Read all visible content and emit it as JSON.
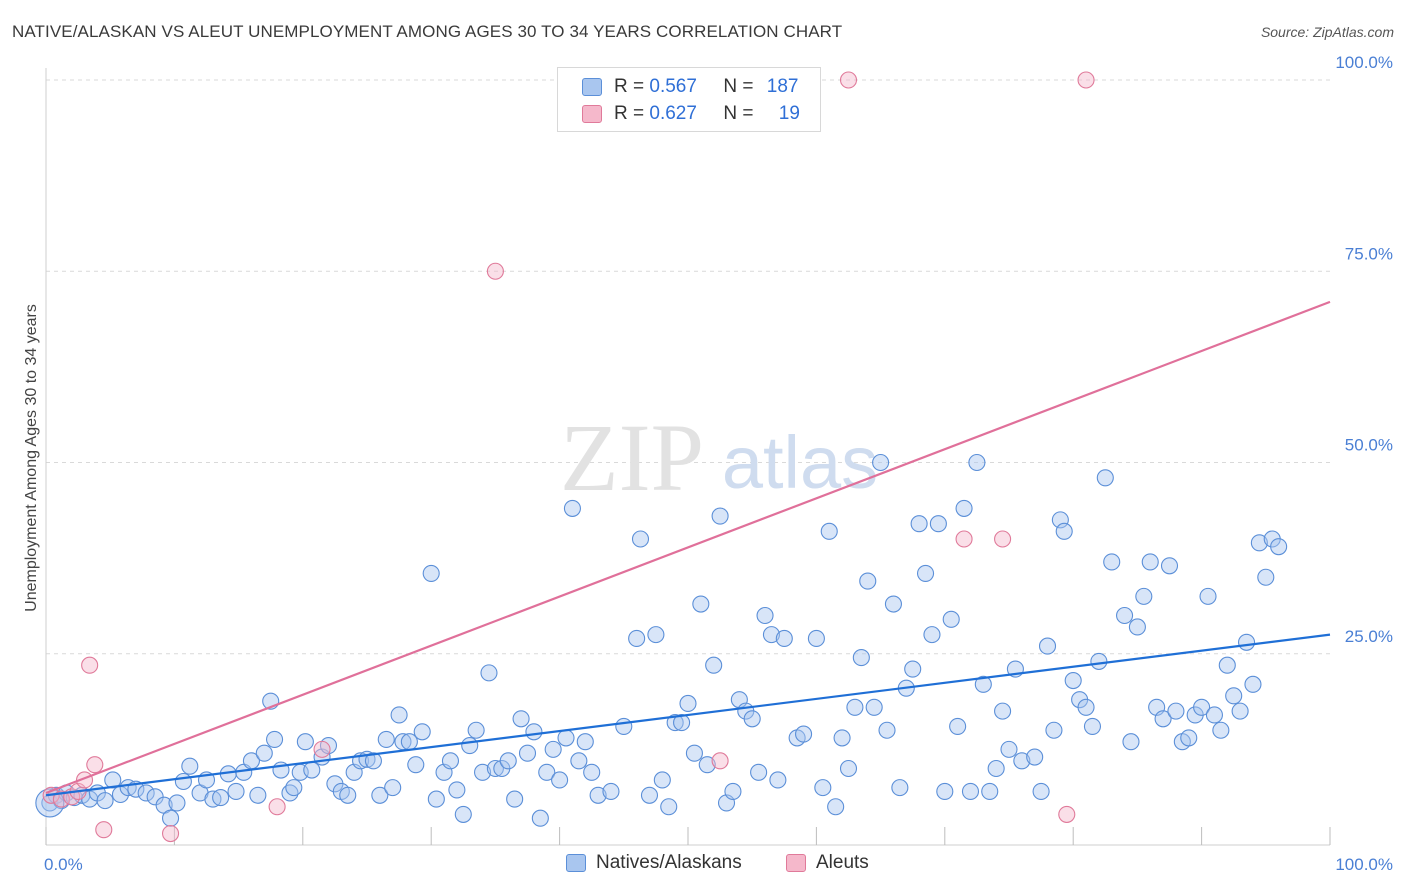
{
  "title": "NATIVE/ALASKAN VS ALEUT UNEMPLOYMENT AMONG AGES 30 TO 34 YEARS CORRELATION CHART",
  "source": "Source: ZipAtlas.com",
  "watermark": {
    "zip": "ZIP",
    "atlas": "atlas"
  },
  "legend": {
    "rows": [
      {
        "r_label": "R = ",
        "r_value": "0.567",
        "n_label": "N = ",
        "n_value": "187"
      },
      {
        "r_label": "R = ",
        "r_value": "0.627",
        "n_label": "N = ",
        "n_value": "19"
      }
    ]
  },
  "colors": {
    "blue_fill": "#a9c6ef",
    "blue_stroke": "#5b8fd8",
    "blue_line": "#1f6fd6",
    "pink_fill": "#f5b8cb",
    "pink_stroke": "#e07a9a",
    "pink_line": "#e0709a",
    "tick": "#4a7fd4",
    "grid": "#d9d9d9"
  },
  "chart_data": {
    "type": "scatter",
    "title": "NATIVE/ALASKAN VS ALEUT UNEMPLOYMENT AMONG AGES 30 TO 34 YEARS CORRELATION CHART",
    "xlabel": "",
    "ylabel": "Unemployment Among Ages 30 to 34 years",
    "xlim": [
      0,
      100
    ],
    "ylim": [
      0,
      100
    ],
    "x_tick_labels": [
      "0.0%",
      "100.0%"
    ],
    "y_tick_labels": [
      "25.0%",
      "50.0%",
      "75.0%",
      "100.0%"
    ],
    "grid": true,
    "legend_position": "top-center and bottom",
    "series": [
      {
        "name": "Natives/Alaskans",
        "r": 0.567,
        "n": 187,
        "trend": {
          "x": [
            0,
            100
          ],
          "y": [
            6.5,
            27.5
          ]
        },
        "points": [
          [
            0.3,
            5.5
          ],
          [
            0.8,
            6.5
          ],
          [
            1.2,
            5.8
          ],
          [
            1.6,
            6.8
          ],
          [
            2.2,
            6.2
          ],
          [
            2.8,
            6.5
          ],
          [
            3.4,
            6
          ],
          [
            4,
            6.8
          ],
          [
            4.6,
            5.8
          ],
          [
            5.2,
            8.5
          ],
          [
            5.8,
            6.6
          ],
          [
            6.4,
            7.5
          ],
          [
            7,
            7.3
          ],
          [
            7.8,
            6.8
          ],
          [
            8.5,
            6.3
          ],
          [
            9.2,
            5.2
          ],
          [
            9.7,
            3.5
          ],
          [
            10.2,
            5.5
          ],
          [
            10.7,
            8.3
          ],
          [
            11.2,
            10.3
          ],
          [
            12,
            6.8
          ],
          [
            12.5,
            8.5
          ],
          [
            13,
            6
          ],
          [
            13.6,
            6.2
          ],
          [
            14.2,
            9.3
          ],
          [
            14.8,
            7
          ],
          [
            15.4,
            9.5
          ],
          [
            16,
            11
          ],
          [
            16.5,
            6.5
          ],
          [
            17,
            12
          ],
          [
            17.5,
            18.8
          ],
          [
            17.8,
            13.8
          ],
          [
            18.3,
            9.8
          ],
          [
            19,
            6.8
          ],
          [
            19.3,
            7.5
          ],
          [
            19.8,
            9.5
          ],
          [
            20.2,
            13.5
          ],
          [
            20.7,
            9.8
          ],
          [
            21.5,
            11.5
          ],
          [
            22,
            13
          ],
          [
            22.5,
            8
          ],
          [
            23,
            7
          ],
          [
            23.5,
            6.5
          ],
          [
            24,
            9.5
          ],
          [
            24.5,
            11
          ],
          [
            25,
            11.2
          ],
          [
            25.5,
            11
          ],
          [
            26,
            6.5
          ],
          [
            26.5,
            13.8
          ],
          [
            27,
            7.5
          ],
          [
            27.5,
            17
          ],
          [
            27.8,
            13.5
          ],
          [
            28.3,
            13.5
          ],
          [
            28.8,
            10.5
          ],
          [
            29.3,
            14.8
          ],
          [
            30,
            35.5
          ],
          [
            30.4,
            6
          ],
          [
            31,
            9.5
          ],
          [
            31.5,
            11
          ],
          [
            32,
            7.2
          ],
          [
            32.5,
            4
          ],
          [
            33,
            13
          ],
          [
            33.5,
            15
          ],
          [
            34,
            9.5
          ],
          [
            34.5,
            22.5
          ],
          [
            35,
            10
          ],
          [
            35.5,
            10
          ],
          [
            36,
            11
          ],
          [
            36.5,
            6
          ],
          [
            37,
            16.5
          ],
          [
            37.5,
            12
          ],
          [
            38,
            14.8
          ],
          [
            38.5,
            3.5
          ],
          [
            39,
            9.5
          ],
          [
            39.5,
            12.5
          ],
          [
            40,
            8.5
          ],
          [
            40.5,
            14
          ],
          [
            41,
            44
          ],
          [
            41.5,
            11
          ],
          [
            42,
            13.5
          ],
          [
            42.5,
            9.5
          ],
          [
            43,
            6.5
          ],
          [
            44,
            7
          ],
          [
            45,
            15.5
          ],
          [
            46,
            27
          ],
          [
            46.3,
            40
          ],
          [
            47,
            6.5
          ],
          [
            47.5,
            27.5
          ],
          [
            48,
            8.5
          ],
          [
            48.5,
            5
          ],
          [
            49,
            16
          ],
          [
            49.5,
            16
          ],
          [
            50,
            18.5
          ],
          [
            50.5,
            12
          ],
          [
            51,
            31.5
          ],
          [
            51.5,
            10.5
          ],
          [
            52,
            23.5
          ],
          [
            52.5,
            43
          ],
          [
            53,
            5.5
          ],
          [
            53.5,
            7
          ],
          [
            54,
            19
          ],
          [
            54.5,
            17.5
          ],
          [
            55,
            16.5
          ],
          [
            55.5,
            9.5
          ],
          [
            56,
            30
          ],
          [
            56.5,
            27.5
          ],
          [
            57,
            8.5
          ],
          [
            57.5,
            27
          ],
          [
            58.5,
            14
          ],
          [
            59,
            14.5
          ],
          [
            60,
            27
          ],
          [
            60.5,
            7.5
          ],
          [
            61,
            41
          ],
          [
            61.5,
            5
          ],
          [
            62,
            14
          ],
          [
            62.5,
            10
          ],
          [
            63,
            18
          ],
          [
            63.5,
            24.5
          ],
          [
            64,
            34.5
          ],
          [
            64.5,
            18
          ],
          [
            65,
            50
          ],
          [
            65.5,
            15
          ],
          [
            66,
            31.5
          ],
          [
            66.5,
            7.5
          ],
          [
            67,
            20.5
          ],
          [
            67.5,
            23
          ],
          [
            68,
            42
          ],
          [
            68.5,
            35.5
          ],
          [
            69,
            27.5
          ],
          [
            69.5,
            42
          ],
          [
            70,
            7
          ],
          [
            70.5,
            29.5
          ],
          [
            71,
            15.5
          ],
          [
            71.5,
            44
          ],
          [
            72,
            7
          ],
          [
            72.5,
            50
          ],
          [
            73,
            21
          ],
          [
            73.5,
            7
          ],
          [
            74,
            10
          ],
          [
            74.5,
            17.5
          ],
          [
            75,
            12.5
          ],
          [
            75.5,
            23
          ],
          [
            76,
            11
          ],
          [
            77,
            11.5
          ],
          [
            77.5,
            7
          ],
          [
            78,
            26
          ],
          [
            78.5,
            15
          ],
          [
            79,
            42.5
          ],
          [
            79.3,
            41
          ],
          [
            80,
            21.5
          ],
          [
            80.5,
            19
          ],
          [
            81,
            18
          ],
          [
            81.5,
            15.5
          ],
          [
            82,
            24
          ],
          [
            82.5,
            48
          ],
          [
            83,
            37
          ],
          [
            84,
            30
          ],
          [
            84.5,
            13.5
          ],
          [
            85,
            28.5
          ],
          [
            85.5,
            32.5
          ],
          [
            86,
            37
          ],
          [
            86.5,
            18
          ],
          [
            87,
            16.5
          ],
          [
            87.5,
            36.5
          ],
          [
            88,
            17.5
          ],
          [
            88.5,
            13.5
          ],
          [
            89,
            14
          ],
          [
            89.5,
            17
          ],
          [
            90,
            18
          ],
          [
            90.5,
            32.5
          ],
          [
            91,
            17
          ],
          [
            91.5,
            15
          ],
          [
            92,
            23.5
          ],
          [
            92.5,
            19.5
          ],
          [
            93,
            17.5
          ],
          [
            93.5,
            26.5
          ],
          [
            94,
            21
          ],
          [
            94.5,
            39.5
          ],
          [
            95,
            35
          ],
          [
            95.5,
            40
          ],
          [
            96,
            39
          ]
        ]
      },
      {
        "name": "Aleuts",
        "r": 0.627,
        "n": 19,
        "trend": {
          "x": [
            0,
            100
          ],
          "y": [
            6.8,
            71
          ]
        },
        "points": [
          [
            0.4,
            6.5
          ],
          [
            1.2,
            6
          ],
          [
            2,
            6.3
          ],
          [
            2.5,
            7
          ],
          [
            3,
            8.5
          ],
          [
            3.4,
            23.5
          ],
          [
            3.8,
            10.5
          ],
          [
            4.5,
            2
          ],
          [
            9.7,
            1.5
          ],
          [
            18,
            5
          ],
          [
            21.5,
            12.5
          ],
          [
            35,
            75
          ],
          [
            52.5,
            11
          ],
          [
            62.5,
            100
          ],
          [
            71.5,
            40
          ],
          [
            74.5,
            40
          ],
          [
            79.5,
            4
          ],
          [
            81,
            100
          ]
        ]
      }
    ]
  },
  "bottom_legend": [
    {
      "label": "Natives/Alaskans"
    },
    {
      "label": "Aleuts"
    }
  ]
}
